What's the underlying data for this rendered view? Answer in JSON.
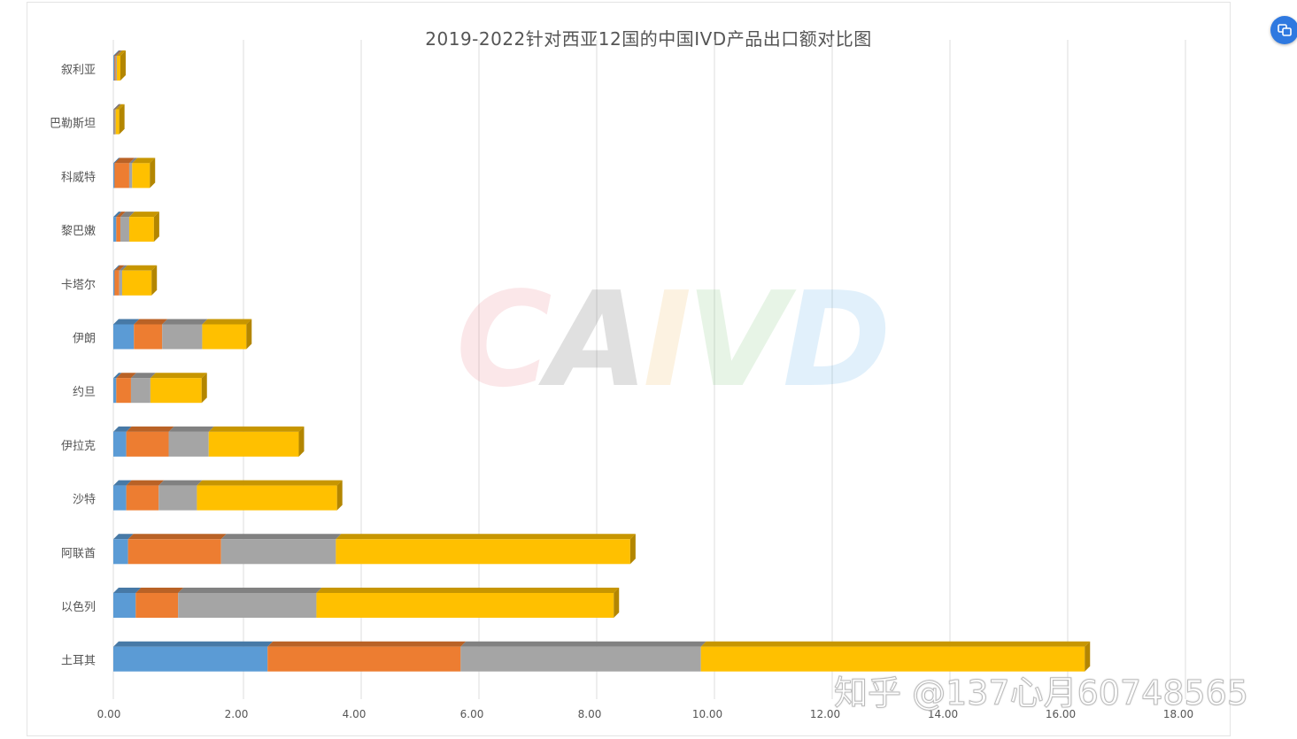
{
  "chart_data": {
    "type": "bar",
    "orientation": "horizontal",
    "stacked": true,
    "style_3d": true,
    "title": "2019-2022针对西亚12国的中国IVD产品出口额对比图",
    "categories": [
      "叙利亚",
      "巴勒斯坦",
      "科威特",
      "黎巴嫩",
      "卡塔尔",
      "伊朗",
      "约旦",
      "伊拉克",
      "沙特",
      "阿联酋",
      "以色列",
      "土耳其"
    ],
    "series": [
      {
        "color": "#5b9bd5",
        "values": [
          0.02,
          0.01,
          0.02,
          0.05,
          0.02,
          0.35,
          0.05,
          0.22,
          0.22,
          0.25,
          0.38,
          2.62
        ]
      },
      {
        "color": "#ed7d31",
        "values": [
          0.02,
          0.01,
          0.25,
          0.07,
          0.08,
          0.48,
          0.25,
          0.72,
          0.55,
          1.58,
          0.72,
          3.28
        ]
      },
      {
        "color": "#a5a5a5",
        "values": [
          0.02,
          0.02,
          0.05,
          0.15,
          0.05,
          0.68,
          0.33,
          0.68,
          0.65,
          1.95,
          2.35,
          4.08
        ]
      },
      {
        "color": "#ffc000",
        "values": [
          0.06,
          0.06,
          0.3,
          0.42,
          0.5,
          0.75,
          0.87,
          1.53,
          2.38,
          5.0,
          5.05,
          6.52
        ]
      }
    ],
    "x_ticks": [
      "0.00",
      "2.00",
      "4.00",
      "6.00",
      "8.00",
      "10.00",
      "12.00",
      "14.00",
      "16.00",
      "18.00"
    ],
    "xlim": [
      0,
      18
    ],
    "grid": "vertical"
  },
  "watermarks": {
    "logo_letters": [
      {
        "char": "C",
        "color": "#e8707a"
      },
      {
        "char": "A",
        "color": "#444444"
      },
      {
        "char": "I",
        "color": "#f0b24a"
      },
      {
        "char": "V",
        "color": "#6fbf6a"
      },
      {
        "char": "D",
        "color": "#4aa8e8"
      }
    ],
    "credit": "知乎 @137心月60748565"
  },
  "ui": {
    "corner_button_icon": "translate-icon"
  }
}
